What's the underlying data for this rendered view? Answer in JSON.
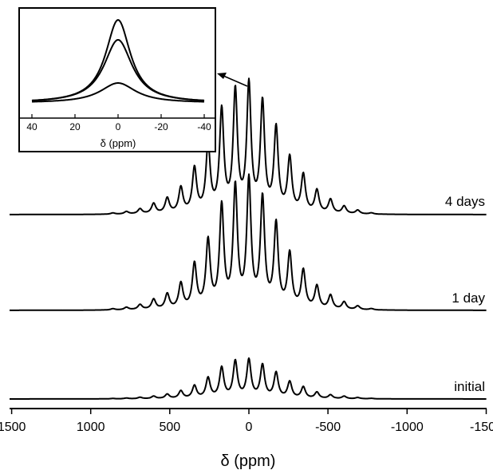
{
  "chart_data": [
    {
      "type": "line",
      "title": "",
      "xlabel": "δ (ppm)",
      "ylabel": "",
      "xlim": [
        1600,
        -1600
      ],
      "x_ticks": [
        1500,
        1000,
        500,
        0,
        -500,
        -1000,
        -1500
      ],
      "x_tick_labels": [
        "1500",
        "1000",
        "500",
        "0",
        "-500",
        "-1000",
        "-1500"
      ],
      "grid": false,
      "legend": "none",
      "spinning_sideband_spacing_ppm": 86,
      "series": [
        {
          "name": "4 days",
          "x": [
            0,
            86,
            -86,
            172,
            -172,
            258,
            -258,
            344,
            -344,
            430,
            -430,
            516,
            -516,
            602,
            -602,
            688,
            -688,
            774,
            -774,
            860
          ],
          "values": [
            1.0,
            0.95,
            0.86,
            0.8,
            0.66,
            0.53,
            0.43,
            0.35,
            0.3,
            0.2,
            0.18,
            0.12,
            0.11,
            0.08,
            0.06,
            0.04,
            0.03,
            0.02,
            0.01,
            0.01
          ]
        },
        {
          "name": "1 day",
          "x": [
            0,
            86,
            -86,
            172,
            -172,
            258,
            -258,
            344,
            -344,
            430,
            -430,
            516,
            -516,
            602,
            -602,
            688,
            -688,
            774,
            -774,
            860
          ],
          "values": [
            1.0,
            0.95,
            0.86,
            0.8,
            0.66,
            0.53,
            0.43,
            0.35,
            0.3,
            0.2,
            0.18,
            0.12,
            0.11,
            0.08,
            0.06,
            0.04,
            0.03,
            0.02,
            0.01,
            0.01
          ]
        },
        {
          "name": "initial",
          "x": [
            0,
            86,
            -86,
            172,
            -172,
            258,
            -258,
            344,
            -344,
            430,
            -430,
            516,
            -516,
            602,
            -602,
            688,
            -688,
            774,
            -774,
            860
          ],
          "values": [
            0.3,
            0.29,
            0.26,
            0.24,
            0.2,
            0.16,
            0.13,
            0.1,
            0.09,
            0.06,
            0.05,
            0.035,
            0.03,
            0.02,
            0.02,
            0.012,
            0.01,
            0.006,
            0.004,
            0.003
          ]
        }
      ]
    },
    {
      "type": "line",
      "title": "",
      "xlabel": "δ (ppm)",
      "ylabel": "",
      "xlim": [
        40,
        -40
      ],
      "x_ticks": [
        40,
        20,
        0,
        -20,
        -40
      ],
      "x_tick_labels": [
        "40",
        "20",
        "0",
        "-20",
        "-40"
      ],
      "grid": false,
      "legend": "none",
      "series": [
        {
          "center_ppm": 0,
          "fwhm_ppm": 14,
          "peak_height": 1.0
        },
        {
          "center_ppm": 0,
          "fwhm_ppm": 16,
          "peak_height": 0.76
        },
        {
          "center_ppm": 0,
          "fwhm_ppm": 20,
          "peak_height": 0.24
        }
      ]
    }
  ]
}
